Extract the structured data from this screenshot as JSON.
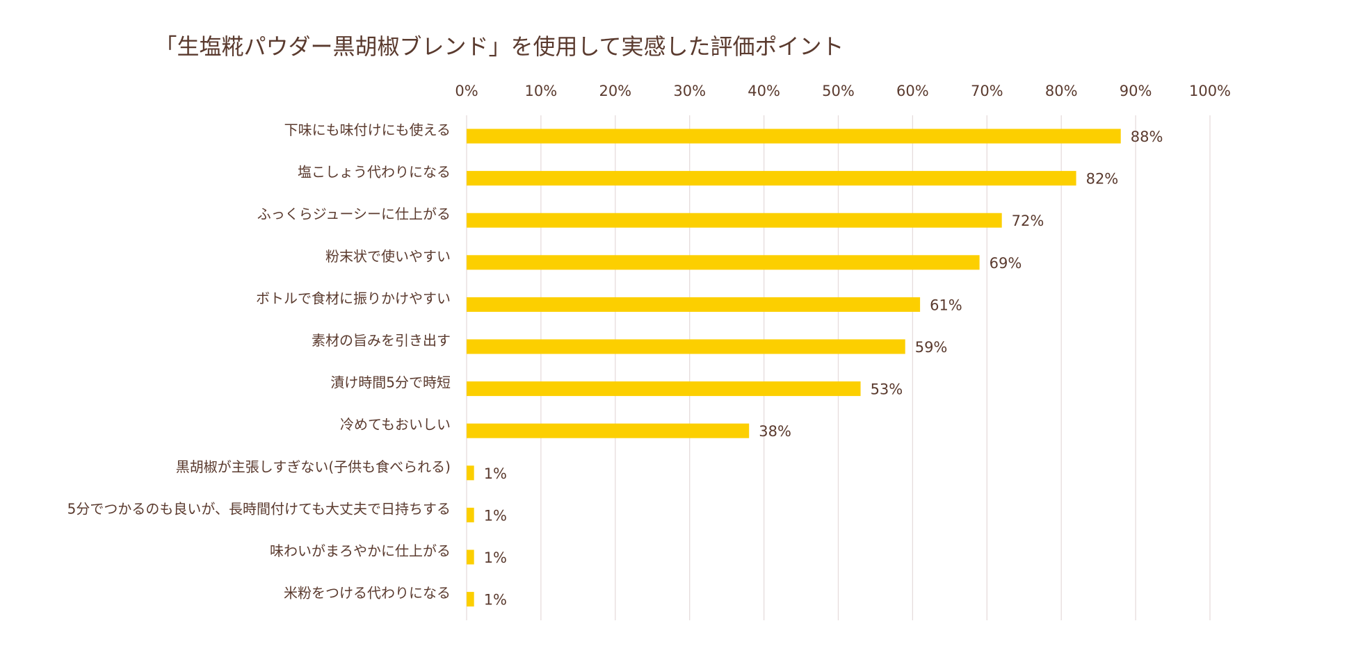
{
  "chart_data": {
    "type": "bar",
    "orientation": "horizontal",
    "title": "「生塩糀パウダー黒胡椒ブレンド」を使用して実感した評価ポイント",
    "xlabel": "",
    "ylabel": "",
    "xlim": [
      0,
      100
    ],
    "x_ticks": [
      "0%",
      "10%",
      "20%",
      "30%",
      "40%",
      "50%",
      "60%",
      "70%",
      "80%",
      "90%",
      "100%"
    ],
    "x_axis_position": "top",
    "grid": true,
    "legend": "none",
    "categories": [
      "下味にも味付けにも使える",
      "塩こしょう代わりになる",
      "ふっくらジューシーに仕上がる",
      "粉末状で使いやすい",
      "ボトルで食材に振りかけやすい",
      "素材の旨みを引き出す",
      "漬け時間5分で時短",
      "冷めてもおいしい",
      "黒胡椒が主張しすぎない(子供も食べられる)",
      "5分でつかるのも良いが、長時間付けても大丈夫で日持ちする",
      "味わいがまろやかに仕上がる",
      "米粉をつける代わりになる"
    ],
    "values": [
      88,
      82,
      72,
      69,
      61,
      59,
      53,
      38,
      1,
      1,
      1,
      1
    ],
    "data_labels": [
      "88%",
      "82%",
      "72%",
      "69%",
      "61%",
      "59%",
      "53%",
      "38%",
      "1%",
      "1%",
      "1%",
      "1%"
    ],
    "colors": {
      "bar": "#fccf00",
      "text": "#5a3a2e",
      "grid": "#e6dcdc"
    }
  }
}
